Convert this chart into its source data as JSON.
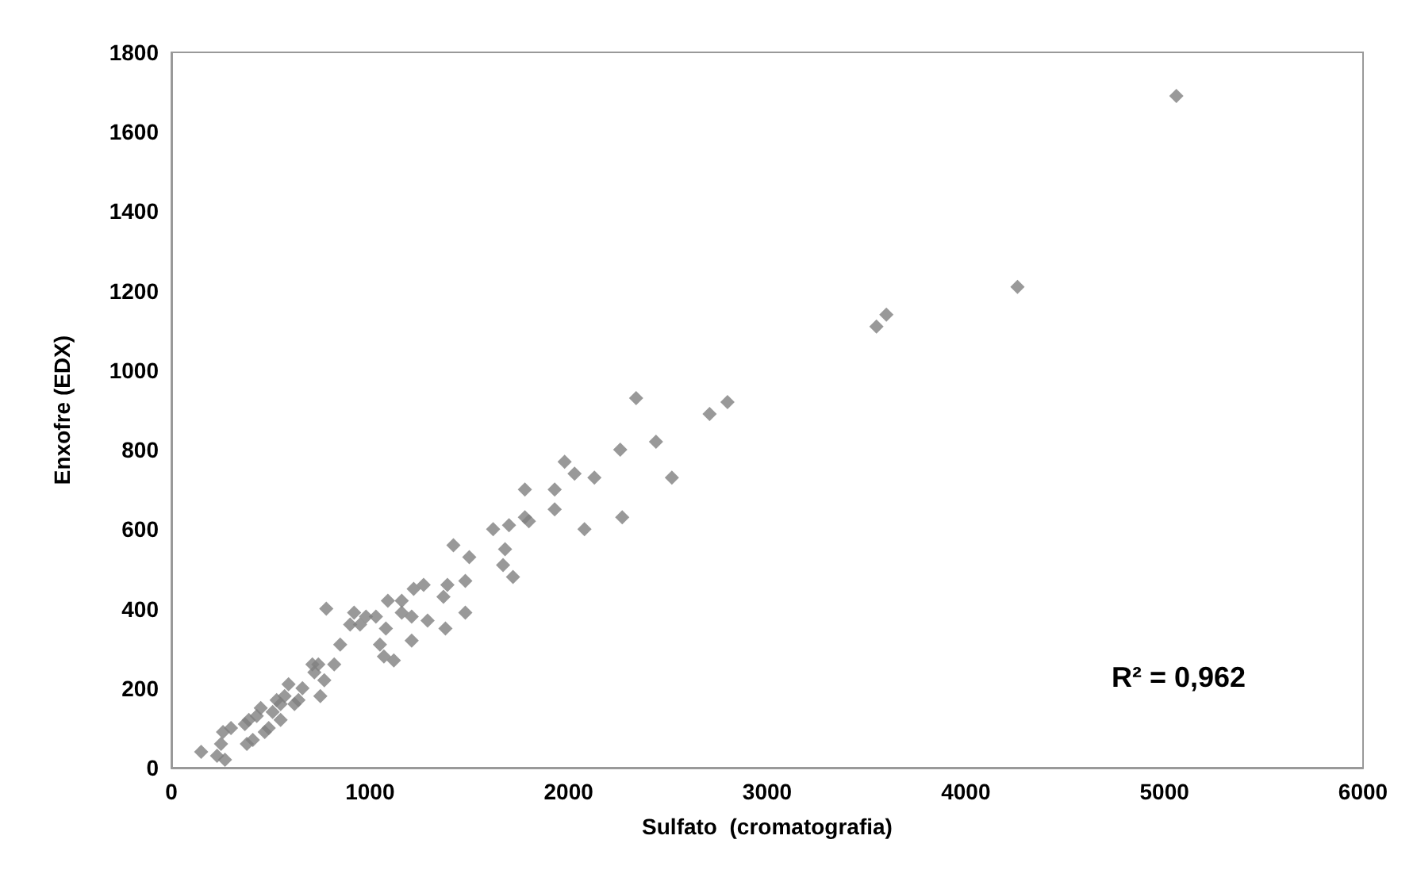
{
  "chart_data": {
    "type": "scatter",
    "xlabel": "Sulfato  (cromatografia)",
    "ylabel": "Enxofre (EDX)",
    "annotations": [
      "R² = 0,962"
    ],
    "xlim": [
      0,
      6000
    ],
    "xticks": [
      0,
      1000,
      2000,
      3000,
      4000,
      5000,
      6000
    ],
    "ylim": [
      0,
      1800
    ],
    "yticks": [
      0,
      200,
      400,
      600,
      800,
      1000,
      1200,
      1400,
      1600,
      1800
    ],
    "grid": false,
    "marker": "diamond",
    "series": [
      {
        "color": "#7f7f7f",
        "x": [
          150,
          230,
          270,
          250,
          260,
          300,
          370,
          390,
          430,
          450,
          380,
          410,
          470,
          490,
          510,
          550,
          530,
          570,
          590,
          550,
          620,
          640,
          660,
          710,
          740,
          720,
          750,
          770,
          780,
          820,
          850,
          900,
          920,
          950,
          980,
          1030,
          1050,
          1070,
          1080,
          1090,
          1120,
          1160,
          1160,
          1210,
          1210,
          1220,
          1270,
          1290,
          1370,
          1390,
          1380,
          1420,
          1480,
          1480,
          1500,
          1620,
          1680,
          1670,
          1720,
          1700,
          1780,
          1780,
          1800,
          1930,
          1930,
          1980,
          2030,
          2080,
          2130,
          2260,
          2270,
          2340,
          2440,
          2520,
          2710,
          2800,
          3550,
          3600,
          4260,
          5060
        ],
        "values": [
          40,
          30,
          20,
          60,
          90,
          100,
          110,
          120,
          130,
          150,
          60,
          70,
          90,
          100,
          140,
          120,
          170,
          180,
          210,
          160,
          160,
          170,
          200,
          260,
          260,
          240,
          180,
          220,
          400,
          260,
          310,
          360,
          390,
          360,
          380,
          380,
          310,
          280,
          350,
          420,
          270,
          420,
          390,
          380,
          320,
          450,
          460,
          370,
          430,
          460,
          350,
          560,
          470,
          390,
          530,
          600,
          550,
          510,
          480,
          610,
          700,
          630,
          620,
          700,
          650,
          770,
          740,
          600,
          730,
          800,
          630,
          930,
          820,
          730,
          890,
          920,
          1110,
          1140,
          1210,
          1690
        ]
      }
    ]
  }
}
